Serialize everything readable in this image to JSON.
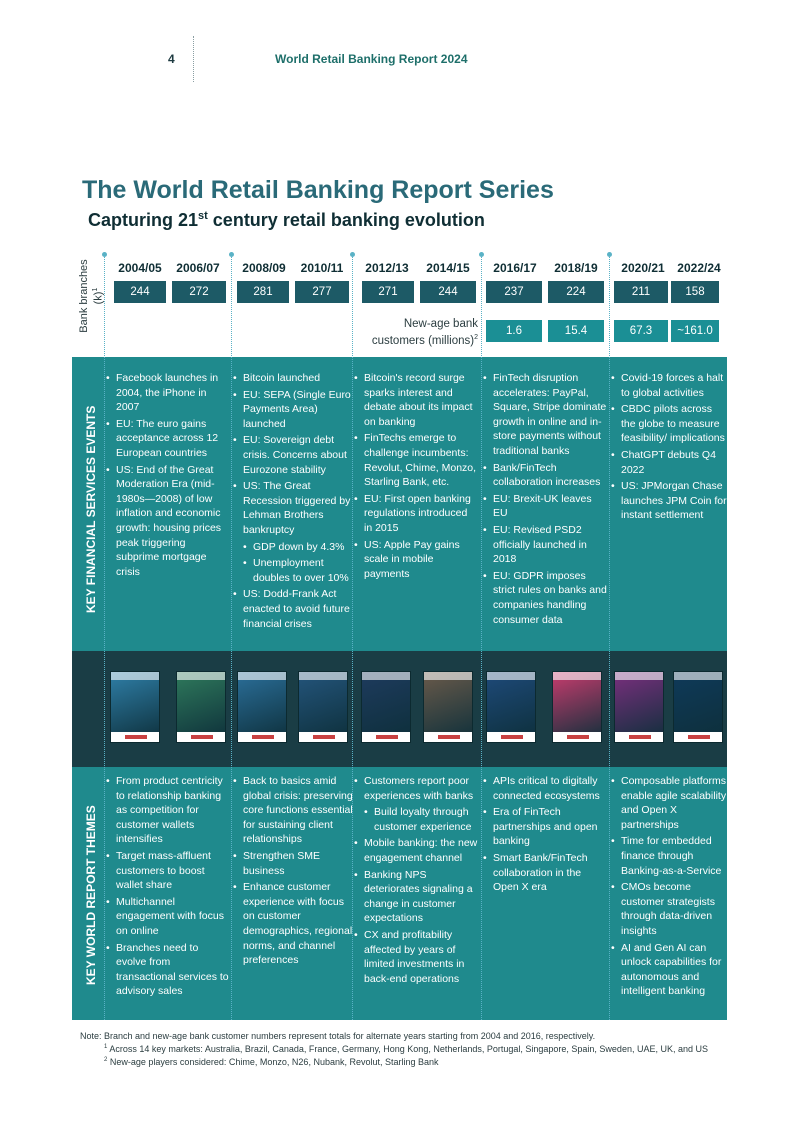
{
  "header": {
    "page_number": "4",
    "report_title": "World Retail Banking Report 2024"
  },
  "title": "The World Retail Banking Report Series",
  "subtitle_prefix": "Capturing 21",
  "subtitle_sup": "st",
  "subtitle_suffix": " century retail banking evolution",
  "bank_branches_label": "Bank branches (k)",
  "bank_branches_sup": "1",
  "new_age_label": "New-age bank customers (millions)",
  "new_age_sup": "2",
  "years": [
    "2004/05",
    "2006/07",
    "2008/09",
    "2010/11",
    "2012/13",
    "2014/15",
    "2016/17",
    "2018/19",
    "2020/21",
    "2022/24"
  ],
  "branches": [
    "244",
    "272",
    "281",
    "277",
    "271",
    "244",
    "237",
    "224",
    "211",
    "158"
  ],
  "new_age": [
    "1.6",
    "15.4",
    "67.3",
    "~161.0"
  ],
  "events_title": "KEY FINANCIAL SERVICES EVENTS",
  "events": [
    {
      "items": [
        "Facebook launches in 2004, the iPhone in 2007",
        "EU: The euro gains acceptance across 12 European countries",
        "US: End of the Great Moderation Era (mid-1980s—2008) of low inflation and economic growth: housing prices peak triggering subprime mortgage crisis"
      ]
    },
    {
      "items": [
        "Bitcoin launched",
        "EU: SEPA (Single Euro Payments Area) launched",
        "EU: Sovereign debt crisis. Concerns about Eurozone stability",
        "US: The Great Recession triggered by Lehman Brothers bankruptcy"
      ],
      "sub_items": [
        "GDP down by 4.3%",
        "Unemployment doubles to over 10%"
      ],
      "after_items": [
        "US: Dodd-Frank Act enacted to avoid future financial crises"
      ]
    },
    {
      "items": [
        "Bitcoin's record surge sparks interest and debate about its impact on banking",
        "FinTechs emerge to challenge incumbents: Revolut, Chime, Monzo, Starling Bank, etc.",
        "EU: First open banking regulations introduced in 2015",
        "US: Apple Pay gains scale in mobile payments"
      ]
    },
    {
      "items": [
        "FinTech disruption accelerates: PayPal, Square, Stripe dominate growth in online and in-store payments without traditional banks",
        "Bank/FinTech collaboration increases",
        "EU: Brexit-UK leaves EU",
        "EU: Revised PSD2 officially launched in 2018",
        "EU: GDPR imposes strict rules on banks and companies handling consumer data"
      ]
    },
    {
      "items": [
        "Covid-19 forces a halt to global activities",
        "CBDC pilots across the globe to measure feasibility/ implications",
        "ChatGPT debuts Q4 2022",
        "US: JPMorgan Chase launches JPM Coin for instant settlement"
      ]
    }
  ],
  "themes_title": "KEY WORLD REPORT THEMES",
  "themes": [
    {
      "items": [
        "From product centricity to relationship banking as competition for customer wallets intensifies",
        "Target mass-affluent customers to boost wallet share",
        "Multichannel engagement  with focus on online",
        "Branches need to evolve from transactional services to advisory sales"
      ]
    },
    {
      "items": [
        "Back to basics amid global crisis: preserving core functions essential for sustaining client relationships",
        "Strengthen SME business",
        "Enhance customer experience with focus on customer demographics, regional norms, and channel preferences"
      ]
    },
    {
      "items": [
        "Customers report poor experiences with banks"
      ],
      "sub_items": [
        "Build loyalty through customer experience"
      ],
      "after_items": [
        "Mobile banking:  the new engagement channel",
        "Banking NPS deteriorates signaling a change in customer expectations",
        "CX and profitability affected by years of limited investments in back-end operations"
      ]
    },
    {
      "items": [
        "APIs critical to digitally connected ecosystems",
        "Era of FinTech partnerships and open banking",
        "Smart Bank/FinTech collaboration in the Open X era"
      ]
    },
    {
      "items": [
        "Composable platforms enable agile scalability and Open X partnerships",
        "Time for embedded finance through Banking-as-a-Service",
        "CMOs become customer strategists through data-driven insights",
        "AI and Gen AI can unlock capabilities for autonomous and intelligent banking"
      ]
    }
  ],
  "covers": [
    {
      "color": "#2f7fa8"
    },
    {
      "color": "#2f7a5c"
    },
    {
      "color": "#2b6f9a"
    },
    {
      "color": "#24557c"
    },
    {
      "color": "#1e3b5e"
    },
    {
      "color": "#6a5a4a"
    },
    {
      "color": "#1e4a7a"
    },
    {
      "color": "#c83c6e"
    },
    {
      "color": "#7a2f7e"
    },
    {
      "color": "#0f3a5a"
    }
  ],
  "note_main": "Note: Branch and new-age bank customer numbers represent totals for alternate years starting from 2004 and 2016, respectively.",
  "note_1_sup": "1",
  "note_1": "  Across 14 key markets: Australia, Brazil, Canada, France, Germany, Hong Kong, Netherlands, Portugal, Singapore, Spain, Sweden, UAE, UK, and US",
  "note_2_sup": "2",
  "note_2": " New-age players considered: Chime, Monzo, N26, Nubank, Revolut, Starling Bank"
}
